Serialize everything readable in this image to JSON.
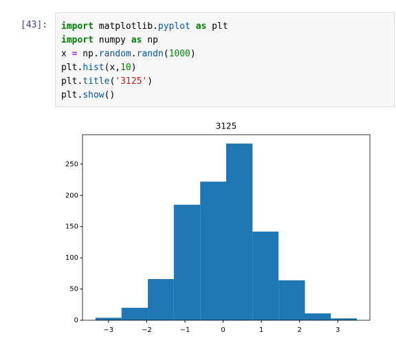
{
  "cell": {
    "prompt": "[43]:",
    "code": [
      [
        {
          "text": "import",
          "color": "#008000",
          "bold": true
        },
        {
          "text": " matplotlib."
        },
        {
          "text": "pyplot",
          "color": "#0055aa"
        },
        {
          "text": " "
        },
        {
          "text": "as",
          "color": "#008000",
          "bold": true
        },
        {
          "text": " plt"
        }
      ],
      [
        {
          "text": "import",
          "color": "#008000",
          "bold": true
        },
        {
          "text": " numpy "
        },
        {
          "text": "as",
          "color": "#008000",
          "bold": true
        },
        {
          "text": " np"
        }
      ],
      [
        {
          "text": "x "
        },
        {
          "text": "=",
          "color": "#aa22ff",
          "bold": true
        },
        {
          "text": " np."
        },
        {
          "text": "random",
          "color": "#0055aa"
        },
        {
          "text": "."
        },
        {
          "text": "randn",
          "color": "#0055aa"
        },
        {
          "text": "("
        },
        {
          "text": "1000",
          "color": "#008800"
        },
        {
          "text": ")"
        }
      ],
      [
        {
          "text": "plt."
        },
        {
          "text": "hist",
          "color": "#0055aa"
        },
        {
          "text": "(x,"
        },
        {
          "text": "10",
          "color": "#008800"
        },
        {
          "text": ")"
        }
      ],
      [
        {
          "text": "plt."
        },
        {
          "text": "title",
          "color": "#0055aa"
        },
        {
          "text": "("
        },
        {
          "text": "'3125'",
          "color": "#ba2121"
        },
        {
          "text": ")"
        }
      ],
      [
        {
          "text": "plt."
        },
        {
          "text": "show",
          "color": "#0055aa"
        },
        {
          "text": "()"
        }
      ]
    ]
  },
  "chart_data": {
    "type": "histogram",
    "title": "3125",
    "color": "#1f77b4",
    "bins": [
      -3.34,
      -2.66,
      -1.97,
      -1.29,
      -0.6,
      0.08,
      0.77,
      1.45,
      2.14,
      2.82,
      3.5
    ],
    "values": [
      4,
      20,
      66,
      185,
      222,
      283,
      142,
      64,
      11,
      3
    ],
    "xlim": [
      -3.68,
      3.84
    ],
    "ylim": [
      0,
      297.15
    ],
    "xticks": [
      {
        "value": -3,
        "label": "−3"
      },
      {
        "value": -2,
        "label": "−2"
      },
      {
        "value": -1,
        "label": "−1"
      },
      0,
      1,
      2,
      3
    ],
    "yticks": [
      0,
      50,
      100,
      150,
      200,
      250
    ]
  }
}
